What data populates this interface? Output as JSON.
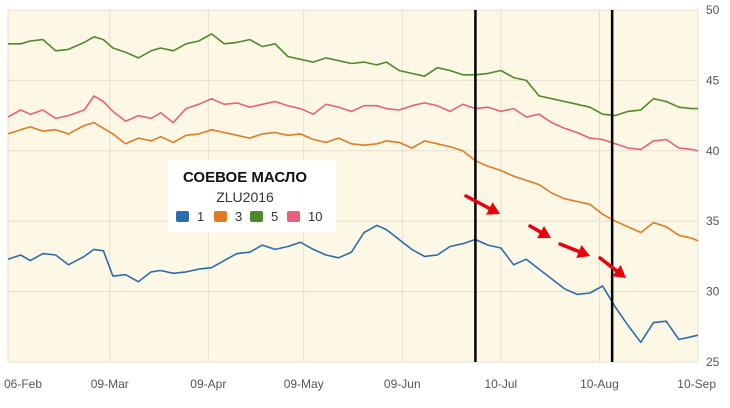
{
  "chart_data": {
    "type": "line",
    "title": "СОЕВОЕ МАСЛО",
    "subtitle": "ZLU2016",
    "x_ticks": [
      "06-Feb",
      "09-Mar",
      "09-Apr",
      "09-May",
      "09-Jun",
      "10-Jul",
      "10-Aug",
      "10-Sep"
    ],
    "ylim": [
      25,
      50
    ],
    "y_ticks": [
      "25",
      "30",
      "35",
      "40",
      "45",
      "50"
    ],
    "grid": true,
    "legend_placement": "center-left",
    "background_color": "#fdf7e6",
    "annotations": [
      {
        "type": "vertical-line",
        "date": "2016-07-02",
        "color": "#000000"
      },
      {
        "type": "vertical-line",
        "date": "2016-08-14",
        "color": "#000000"
      },
      {
        "type": "arrows",
        "direction": "down-right",
        "color": "#e8000d",
        "count": 4
      }
    ],
    "series": [
      {
        "name": "1",
        "color": "#2b6cb0",
        "points": [
          [
            "2016-02-06",
            32.3
          ],
          [
            "2016-02-10",
            32.6
          ],
          [
            "2016-02-13",
            32.2
          ],
          [
            "2016-02-17",
            32.7
          ],
          [
            "2016-02-21",
            32.6
          ],
          [
            "2016-02-25",
            31.9
          ],
          [
            "2016-03-01",
            32.5
          ],
          [
            "2016-03-04",
            33.0
          ],
          [
            "2016-03-07",
            32.9
          ],
          [
            "2016-03-10",
            31.1
          ],
          [
            "2016-03-14",
            31.2
          ],
          [
            "2016-03-18",
            30.7
          ],
          [
            "2016-03-22",
            31.4
          ],
          [
            "2016-03-25",
            31.5
          ],
          [
            "2016-03-29",
            31.3
          ],
          [
            "2016-04-02",
            31.4
          ],
          [
            "2016-04-06",
            31.6
          ],
          [
            "2016-04-10",
            31.7
          ],
          [
            "2016-04-14",
            32.2
          ],
          [
            "2016-04-18",
            32.7
          ],
          [
            "2016-04-22",
            32.8
          ],
          [
            "2016-04-26",
            33.3
          ],
          [
            "2016-04-30",
            33.0
          ],
          [
            "2016-05-04",
            33.2
          ],
          [
            "2016-05-08",
            33.5
          ],
          [
            "2016-05-12",
            33.0
          ],
          [
            "2016-05-16",
            32.6
          ],
          [
            "2016-05-20",
            32.4
          ],
          [
            "2016-05-24",
            32.8
          ],
          [
            "2016-05-28",
            34.2
          ],
          [
            "2016-06-01",
            34.7
          ],
          [
            "2016-06-04",
            34.4
          ],
          [
            "2016-06-08",
            33.7
          ],
          [
            "2016-06-12",
            33.0
          ],
          [
            "2016-06-16",
            32.5
          ],
          [
            "2016-06-20",
            32.6
          ],
          [
            "2016-06-24",
            33.2
          ],
          [
            "2016-06-28",
            33.4
          ],
          [
            "2016-07-02",
            33.7
          ],
          [
            "2016-07-06",
            33.3
          ],
          [
            "2016-07-10",
            33.1
          ],
          [
            "2016-07-14",
            31.9
          ],
          [
            "2016-07-18",
            32.3
          ],
          [
            "2016-07-22",
            31.6
          ],
          [
            "2016-07-26",
            30.9
          ],
          [
            "2016-07-30",
            30.2
          ],
          [
            "2016-08-03",
            29.8
          ],
          [
            "2016-08-07",
            29.9
          ],
          [
            "2016-08-11",
            30.4
          ],
          [
            "2016-08-15",
            28.9
          ],
          [
            "2016-08-19",
            27.6
          ],
          [
            "2016-08-23",
            26.4
          ],
          [
            "2016-08-27",
            27.8
          ],
          [
            "2016-08-31",
            27.9
          ],
          [
            "2016-09-04",
            26.6
          ],
          [
            "2016-09-08",
            26.8
          ],
          [
            "2016-09-10",
            26.9
          ]
        ]
      },
      {
        "name": "3",
        "color": "#e07b22",
        "points": [
          [
            "2016-02-06",
            41.2
          ],
          [
            "2016-02-10",
            41.5
          ],
          [
            "2016-02-13",
            41.7
          ],
          [
            "2016-02-17",
            41.4
          ],
          [
            "2016-02-21",
            41.5
          ],
          [
            "2016-02-25",
            41.2
          ],
          [
            "2016-03-01",
            41.8
          ],
          [
            "2016-03-04",
            42.0
          ],
          [
            "2016-03-07",
            41.6
          ],
          [
            "2016-03-10",
            41.2
          ],
          [
            "2016-03-14",
            40.5
          ],
          [
            "2016-03-18",
            40.9
          ],
          [
            "2016-03-22",
            40.7
          ],
          [
            "2016-03-25",
            41.0
          ],
          [
            "2016-03-29",
            40.6
          ],
          [
            "2016-04-02",
            41.1
          ],
          [
            "2016-04-06",
            41.2
          ],
          [
            "2016-04-10",
            41.5
          ],
          [
            "2016-04-14",
            41.3
          ],
          [
            "2016-04-18",
            41.1
          ],
          [
            "2016-04-22",
            40.9
          ],
          [
            "2016-04-26",
            41.2
          ],
          [
            "2016-04-30",
            41.3
          ],
          [
            "2016-05-04",
            41.1
          ],
          [
            "2016-05-08",
            41.2
          ],
          [
            "2016-05-12",
            40.8
          ],
          [
            "2016-05-16",
            40.6
          ],
          [
            "2016-05-20",
            40.9
          ],
          [
            "2016-05-24",
            40.5
          ],
          [
            "2016-05-28",
            40.4
          ],
          [
            "2016-06-01",
            40.5
          ],
          [
            "2016-06-04",
            40.7
          ],
          [
            "2016-06-08",
            40.6
          ],
          [
            "2016-06-12",
            40.2
          ],
          [
            "2016-06-16",
            40.7
          ],
          [
            "2016-06-20",
            40.5
          ],
          [
            "2016-06-24",
            40.3
          ],
          [
            "2016-06-28",
            40.0
          ],
          [
            "2016-07-02",
            39.3
          ],
          [
            "2016-07-06",
            38.9
          ],
          [
            "2016-07-10",
            38.6
          ],
          [
            "2016-07-14",
            38.2
          ],
          [
            "2016-07-18",
            37.9
          ],
          [
            "2016-07-22",
            37.6
          ],
          [
            "2016-07-26",
            37.0
          ],
          [
            "2016-07-30",
            36.6
          ],
          [
            "2016-08-03",
            36.4
          ],
          [
            "2016-08-07",
            36.2
          ],
          [
            "2016-08-11",
            35.5
          ],
          [
            "2016-08-15",
            35.0
          ],
          [
            "2016-08-19",
            34.6
          ],
          [
            "2016-08-23",
            34.2
          ],
          [
            "2016-08-27",
            34.9
          ],
          [
            "2016-08-31",
            34.6
          ],
          [
            "2016-09-04",
            34.0
          ],
          [
            "2016-09-08",
            33.8
          ],
          [
            "2016-09-10",
            33.6
          ]
        ]
      },
      {
        "name": "5",
        "color": "#4e8a2c",
        "points": [
          [
            "2016-02-06",
            47.6
          ],
          [
            "2016-02-10",
            47.6
          ],
          [
            "2016-02-13",
            47.8
          ],
          [
            "2016-02-17",
            47.9
          ],
          [
            "2016-02-21",
            47.1
          ],
          [
            "2016-02-25",
            47.2
          ],
          [
            "2016-03-01",
            47.7
          ],
          [
            "2016-03-04",
            48.1
          ],
          [
            "2016-03-07",
            47.9
          ],
          [
            "2016-03-10",
            47.3
          ],
          [
            "2016-03-14",
            47.0
          ],
          [
            "2016-03-18",
            46.6
          ],
          [
            "2016-03-22",
            47.1
          ],
          [
            "2016-03-25",
            47.3
          ],
          [
            "2016-03-29",
            47.1
          ],
          [
            "2016-04-02",
            47.6
          ],
          [
            "2016-04-06",
            47.8
          ],
          [
            "2016-04-10",
            48.3
          ],
          [
            "2016-04-14",
            47.6
          ],
          [
            "2016-04-18",
            47.7
          ],
          [
            "2016-04-22",
            47.9
          ],
          [
            "2016-04-26",
            47.4
          ],
          [
            "2016-04-30",
            47.6
          ],
          [
            "2016-05-04",
            46.7
          ],
          [
            "2016-05-08",
            46.5
          ],
          [
            "2016-05-12",
            46.3
          ],
          [
            "2016-05-16",
            46.6
          ],
          [
            "2016-05-20",
            46.4
          ],
          [
            "2016-05-24",
            46.2
          ],
          [
            "2016-05-28",
            46.3
          ],
          [
            "2016-06-01",
            46.1
          ],
          [
            "2016-06-04",
            46.3
          ],
          [
            "2016-06-08",
            45.7
          ],
          [
            "2016-06-12",
            45.5
          ],
          [
            "2016-06-16",
            45.3
          ],
          [
            "2016-06-20",
            45.9
          ],
          [
            "2016-06-24",
            45.7
          ],
          [
            "2016-06-28",
            45.4
          ],
          [
            "2016-07-02",
            45.4
          ],
          [
            "2016-07-06",
            45.5
          ],
          [
            "2016-07-10",
            45.7
          ],
          [
            "2016-07-14",
            45.2
          ],
          [
            "2016-07-18",
            45.0
          ],
          [
            "2016-07-22",
            43.9
          ],
          [
            "2016-07-26",
            43.7
          ],
          [
            "2016-07-30",
            43.5
          ],
          [
            "2016-08-03",
            43.3
          ],
          [
            "2016-08-07",
            43.1
          ],
          [
            "2016-08-11",
            42.6
          ],
          [
            "2016-08-15",
            42.5
          ],
          [
            "2016-08-19",
            42.8
          ],
          [
            "2016-08-23",
            42.9
          ],
          [
            "2016-08-27",
            43.7
          ],
          [
            "2016-08-31",
            43.5
          ],
          [
            "2016-09-04",
            43.1
          ],
          [
            "2016-09-08",
            43.0
          ],
          [
            "2016-09-10",
            43.0
          ]
        ]
      },
      {
        "name": "10",
        "color": "#e8607e",
        "points": [
          [
            "2016-02-06",
            42.4
          ],
          [
            "2016-02-10",
            42.9
          ],
          [
            "2016-02-13",
            42.6
          ],
          [
            "2016-02-17",
            42.9
          ],
          [
            "2016-02-21",
            42.3
          ],
          [
            "2016-02-25",
            42.5
          ],
          [
            "2016-03-01",
            42.9
          ],
          [
            "2016-03-04",
            43.9
          ],
          [
            "2016-03-07",
            43.5
          ],
          [
            "2016-03-10",
            42.8
          ],
          [
            "2016-03-14",
            42.1
          ],
          [
            "2016-03-18",
            42.5
          ],
          [
            "2016-03-22",
            42.3
          ],
          [
            "2016-03-25",
            42.7
          ],
          [
            "2016-03-29",
            42.0
          ],
          [
            "2016-04-02",
            43.0
          ],
          [
            "2016-04-06",
            43.3
          ],
          [
            "2016-04-10",
            43.7
          ],
          [
            "2016-04-14",
            43.3
          ],
          [
            "2016-04-18",
            43.4
          ],
          [
            "2016-04-22",
            43.1
          ],
          [
            "2016-04-26",
            43.3
          ],
          [
            "2016-04-30",
            43.5
          ],
          [
            "2016-05-04",
            43.2
          ],
          [
            "2016-05-08",
            43.0
          ],
          [
            "2016-05-12",
            42.6
          ],
          [
            "2016-05-16",
            43.3
          ],
          [
            "2016-05-20",
            43.1
          ],
          [
            "2016-05-24",
            42.8
          ],
          [
            "2016-05-28",
            43.2
          ],
          [
            "2016-06-01",
            43.2
          ],
          [
            "2016-06-04",
            43.0
          ],
          [
            "2016-06-08",
            42.9
          ],
          [
            "2016-06-12",
            43.2
          ],
          [
            "2016-06-16",
            43.4
          ],
          [
            "2016-06-20",
            43.2
          ],
          [
            "2016-06-24",
            42.8
          ],
          [
            "2016-06-28",
            43.3
          ],
          [
            "2016-07-02",
            43.0
          ],
          [
            "2016-07-06",
            43.1
          ],
          [
            "2016-07-10",
            42.8
          ],
          [
            "2016-07-14",
            43.0
          ],
          [
            "2016-07-18",
            42.4
          ],
          [
            "2016-07-22",
            42.6
          ],
          [
            "2016-07-26",
            42.0
          ],
          [
            "2016-07-30",
            41.6
          ],
          [
            "2016-08-03",
            41.3
          ],
          [
            "2016-08-07",
            40.9
          ],
          [
            "2016-08-11",
            40.8
          ],
          [
            "2016-08-15",
            40.5
          ],
          [
            "2016-08-19",
            40.2
          ],
          [
            "2016-08-23",
            40.1
          ],
          [
            "2016-08-27",
            40.7
          ],
          [
            "2016-08-31",
            40.8
          ],
          [
            "2016-09-04",
            40.2
          ],
          [
            "2016-09-08",
            40.1
          ],
          [
            "2016-09-10",
            40.0
          ]
        ]
      }
    ]
  }
}
